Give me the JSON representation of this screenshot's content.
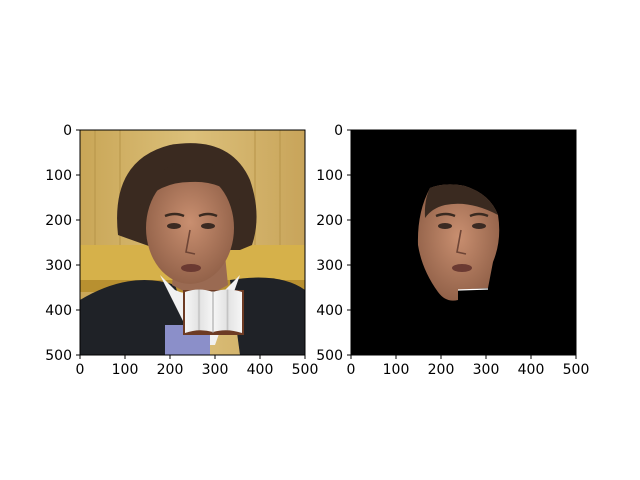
{
  "chart_data": [
    {
      "type": "image",
      "content": "photo of a man with dark wavy hair in a dark suit and white shirt; an open book icon overlays his lower chest",
      "x_ticks": [
        "0",
        "100",
        "200",
        "300",
        "400",
        "500"
      ],
      "y_ticks": [
        "0",
        "100",
        "200",
        "300",
        "400",
        "500"
      ],
      "xlim": [
        0,
        500
      ],
      "ylim": [
        500,
        0
      ],
      "grid": false
    },
    {
      "type": "image",
      "content": "segmentation mask showing only the face region of the same photo on a black background, with a notch cut where the book overlapped the chin",
      "x_ticks": [
        "0",
        "100",
        "200",
        "300",
        "400",
        "500"
      ],
      "y_ticks": [
        "0",
        "100",
        "200",
        "300",
        "400",
        "500"
      ],
      "xlim": [
        0,
        500
      ],
      "ylim": [
        500,
        0
      ],
      "grid": false
    }
  ],
  "colors": {
    "background_wall": "#d8b86a",
    "mask_background": "#000000",
    "suit": "#1f2227",
    "skin": "#b78064",
    "hair": "#3a2a20"
  }
}
